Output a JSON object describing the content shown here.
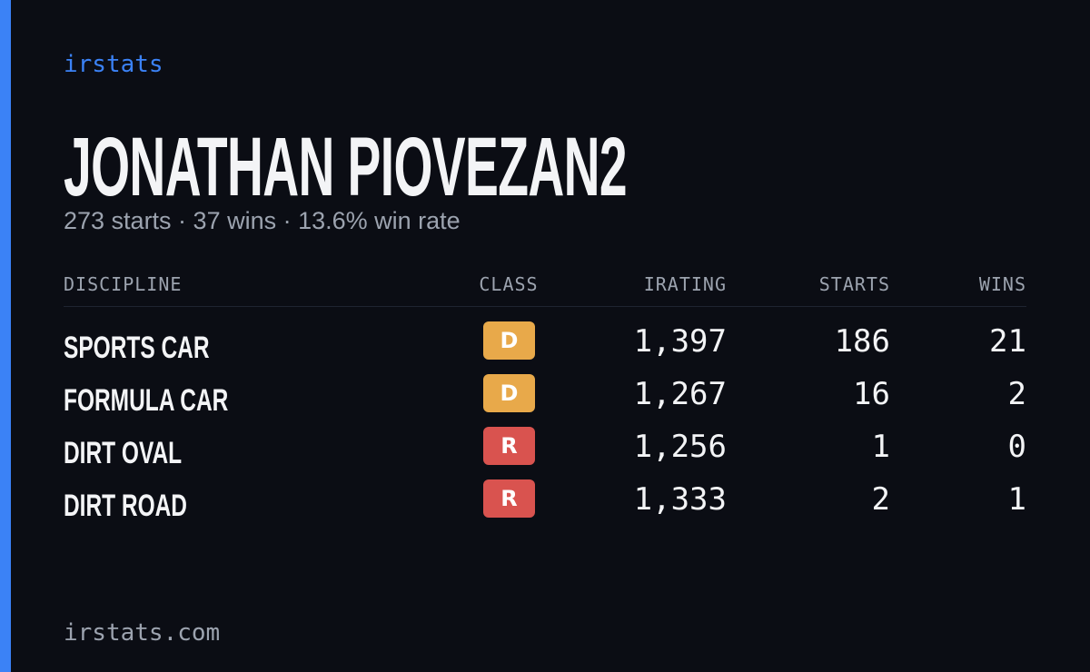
{
  "header": {
    "brand": "irstats",
    "title": "JONATHAN PIOVEZAN2",
    "subtitle": "273 starts · 37 wins · 13.6% win rate"
  },
  "table": {
    "columns": [
      "DISCIPLINE",
      "CLASS",
      "IRATING",
      "STARTS",
      "WINS"
    ],
    "rows": [
      [
        "SPORTS CAR",
        "D",
        "1,397",
        "186",
        "21"
      ],
      [
        "FORMULA CAR",
        "D",
        "1,267",
        "16",
        "2"
      ],
      [
        "DIRT OVAL",
        "R",
        "1,256",
        "1",
        "0"
      ],
      [
        "DIRT ROAD",
        "R",
        "1,333",
        "2",
        "1"
      ]
    ]
  },
  "footer": {
    "site": "irstats.com"
  }
}
